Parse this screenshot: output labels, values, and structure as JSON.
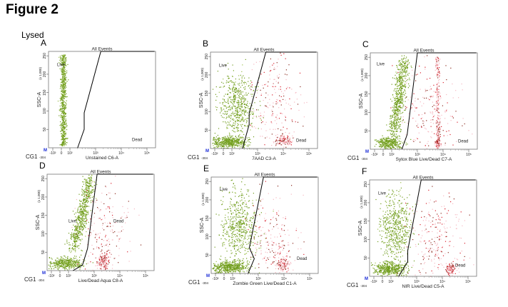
{
  "figure_title": "Figure 2",
  "condition_label": "Lysed",
  "colors": {
    "live": "#6f9c1c",
    "dead": "#d9232f",
    "dead_haze": "#f6b7c0",
    "gate": "#000000",
    "marker": "#1a2bd6"
  },
  "chart_data": [
    {
      "type": "scatter",
      "panel": "A",
      "title": "All Events",
      "xlabel": "Unstained C6-A",
      "ylabel": "SSC-A",
      "yunit": "(x 1,000)",
      "xscale": "biexponential",
      "xlim": [
        -304,
        262144
      ],
      "ylim": [
        0,
        262
      ],
      "xticks": [
        "-10²",
        "0",
        "10²",
        "10³",
        "10⁴",
        "10⁵"
      ],
      "yticks": [
        "50",
        "100",
        "150",
        "200",
        "250"
      ],
      "axis_corner_label": "CG1",
      "axis_min_label": "-304",
      "gates": [
        {
          "name": "Live"
        },
        {
          "name": "Dead"
        }
      ],
      "gate_boundary": [
        [
          200,
          0
        ],
        [
          360,
          50
        ],
        [
          360,
          95
        ],
        [
          1600,
          262
        ]
      ],
      "populations": [
        {
          "gate": "live",
          "x": 20,
          "y": 130,
          "x_spread_decades": 0.06,
          "y_spread": 75,
          "shape": "uniform-y",
          "events": 700
        }
      ]
    },
    {
      "type": "scatter",
      "panel": "B",
      "title": "All Events",
      "xlabel": "7AAD C3-A",
      "ylabel": "SSC-A",
      "yunit": "(x 1,000)",
      "xscale": "biexponential",
      "xlim": [
        -304,
        262144
      ],
      "ylim": [
        0,
        262
      ],
      "xticks": [
        "-10²",
        "0",
        "10²",
        "10³",
        "10⁴",
        "10⁵"
      ],
      "yticks": [
        "50",
        "100",
        "150",
        "200",
        "250"
      ],
      "axis_corner_label": "CG1",
      "axis_min_label": "-304",
      "gates": [
        {
          "name": "Live"
        },
        {
          "name": "Dead"
        }
      ],
      "gate_boundary": [
        [
          260,
          0
        ],
        [
          470,
          65
        ],
        [
          470,
          95
        ],
        [
          2100,
          262
        ]
      ],
      "populations": [
        {
          "gate": "live",
          "x": 60,
          "y": 18,
          "x_spread_decades": 0.35,
          "y_spread": 7,
          "events": 500
        },
        {
          "gate": "live",
          "x": 150,
          "y": 115,
          "x_spread_decades": 0.35,
          "y_spread": 45,
          "events": 550
        },
        {
          "gate": "dead",
          "x": 10000,
          "y": 22,
          "x_spread_decades": 0.15,
          "y_spread": 7,
          "events": 120
        },
        {
          "gate": "dead",
          "x": 5000,
          "y": 120,
          "x_spread_decades": 0.5,
          "y_spread": 80,
          "events": 250
        }
      ]
    },
    {
      "type": "scatter",
      "panel": "C",
      "title": "All Events",
      "xlabel": "Sytox Blue Live/Dead C7-A",
      "ylabel": "SSC-A",
      "yunit": "(x 1,000)",
      "xscale": "biexponential",
      "xlim": [
        -304,
        262144
      ],
      "ylim": [
        0,
        262
      ],
      "xticks": [
        "-10²",
        "0",
        "10²",
        "10³",
        "10⁴",
        "10⁵"
      ],
      "yticks": [
        "50",
        "100",
        "150",
        "200",
        "250"
      ],
      "axis_corner_label": "CG1",
      "axis_min_label": "-304",
      "gates": [
        {
          "name": "Live"
        },
        {
          "name": "Dead"
        }
      ],
      "gate_boundary": [
        [
          250,
          0
        ],
        [
          400,
          40
        ],
        [
          1000,
          262
        ]
      ],
      "populations": [
        {
          "gate": "live",
          "x": 70,
          "y": 18,
          "x_spread_decades": 0.25,
          "y_spread": 8,
          "events": 350
        },
        {
          "gate": "live",
          "x": 110,
          "y": 40,
          "x_end": 300,
          "y_end": 240,
          "x_spread_decades": 0.12,
          "y_spread": 10,
          "events": 650
        },
        {
          "gate": "dead",
          "x": 6000,
          "y": 130,
          "x_spread_decades": 0.04,
          "y_spread": 75,
          "shape": "uniform-y",
          "events": 200
        },
        {
          "gate": "dead",
          "x": 6000,
          "y": 18,
          "x_spread_decades": 0.05,
          "y_spread": 7,
          "events": 80
        },
        {
          "gate": "dead",
          "x": 3000,
          "y": 100,
          "x_spread_decades": 0.6,
          "y_spread": 70,
          "events": 220
        }
      ]
    },
    {
      "type": "scatter",
      "panel": "D",
      "title": "All Events",
      "xlabel": "Live/Dead Aqua C8-A",
      "ylabel": "SSC-A",
      "yunit": "(x 1,000)",
      "xscale": "biexponential",
      "xlim": [
        -304,
        262144
      ],
      "ylim": [
        0,
        262
      ],
      "xticks": [
        "-10²",
        "0",
        "10²",
        "10³",
        "10⁴",
        "10⁵"
      ],
      "yticks": [
        "50",
        "100",
        "150",
        "200",
        "250"
      ],
      "axis_corner_label": "CG1",
      "axis_min_label": "-304",
      "gates": [
        {
          "name": "Live"
        },
        {
          "name": "Dead"
        }
      ],
      "gate_boundary": [
        [
          150,
          0
        ],
        [
          350,
          15
        ],
        [
          550,
          60
        ],
        [
          1300,
          262
        ]
      ],
      "populations": [
        {
          "gate": "live",
          "x": 60,
          "y": 20,
          "x_spread_decades": 0.3,
          "y_spread": 8,
          "events": 400
        },
        {
          "gate": "live",
          "x": 150,
          "y": 60,
          "x_end": 700,
          "y_end": 250,
          "x_spread_decades": 0.12,
          "y_spread": 12,
          "events": 650
        },
        {
          "gate": "dead",
          "x": 2200,
          "y": 25,
          "x_spread_decades": 0.12,
          "y_spread": 10,
          "events": 150
        },
        {
          "gate": "dead",
          "x": 2500,
          "y": 110,
          "x_spread_decades": 0.5,
          "y_spread": 70,
          "events": 220
        }
      ]
    },
    {
      "type": "scatter",
      "panel": "E",
      "title": "All Events",
      "xlabel": "Zombie Green Live/Dead C1-A",
      "ylabel": "SSC-A",
      "yunit": "(x 1,000)",
      "xscale": "biexponential",
      "xlim": [
        -304,
        262144
      ],
      "ylim": [
        0,
        262
      ],
      "xticks": [
        "-10²",
        "0",
        "10²",
        "10³",
        "10⁴",
        "10⁵"
      ],
      "yticks": [
        "50",
        "100",
        "150",
        "200",
        "250"
      ],
      "axis_corner_label": "CG1",
      "axis_min_label": "-304",
      "gates": [
        {
          "name": "Live"
        },
        {
          "name": "Dead"
        }
      ],
      "gate_boundary": [
        [
          400,
          0
        ],
        [
          700,
          40
        ],
        [
          450,
          70
        ],
        [
          1600,
          262
        ]
      ],
      "populations": [
        {
          "gate": "live",
          "x": 60,
          "y": 18,
          "x_spread_decades": 0.35,
          "y_spread": 8,
          "events": 500
        },
        {
          "gate": "live",
          "x": 170,
          "y": 130,
          "x_spread_decades": 0.35,
          "y_spread": 50,
          "events": 550
        },
        {
          "gate": "dead",
          "x": 9000,
          "y": 25,
          "x_spread_decades": 0.12,
          "y_spread": 9,
          "events": 110
        },
        {
          "gate": "dead",
          "x": 4000,
          "y": 90,
          "x_spread_decades": 0.5,
          "y_spread": 65,
          "events": 220
        }
      ]
    },
    {
      "type": "scatter",
      "panel": "F",
      "title": "All Events",
      "xlabel": "NIR Live/Dead C5-A",
      "ylabel": "SSC-A",
      "yunit": "(x 1,000)",
      "xscale": "biexponential",
      "xlim": [
        -304,
        262144
      ],
      "ylim": [
        0,
        262
      ],
      "xticks": [
        "-10²",
        "0",
        "10²",
        "10³",
        "10⁴",
        "10⁵"
      ],
      "yticks": [
        "50",
        "100",
        "150",
        "200",
        "250"
      ],
      "axis_corner_label": "CG1",
      "axis_min_label": "-304",
      "gates": [
        {
          "name": "Live"
        },
        {
          "name": "Dead"
        }
      ],
      "gate_boundary": [
        [
          200,
          0
        ],
        [
          450,
          40
        ],
        [
          450,
          70
        ],
        [
          1500,
          262
        ]
      ],
      "populations": [
        {
          "gate": "live",
          "x": 70,
          "y": 20,
          "x_spread_decades": 0.3,
          "y_spread": 9,
          "events": 450
        },
        {
          "gate": "live",
          "x": 150,
          "y": 130,
          "x_spread_decades": 0.3,
          "y_spread": 50,
          "events": 550
        },
        {
          "gate": "dead",
          "x": 20000,
          "y": 22,
          "x_spread_decades": 0.1,
          "y_spread": 7,
          "events": 110
        },
        {
          "gate": "dead",
          "x": 5000,
          "y": 90,
          "x_spread_decades": 0.55,
          "y_spread": 70,
          "events": 260
        }
      ]
    }
  ]
}
